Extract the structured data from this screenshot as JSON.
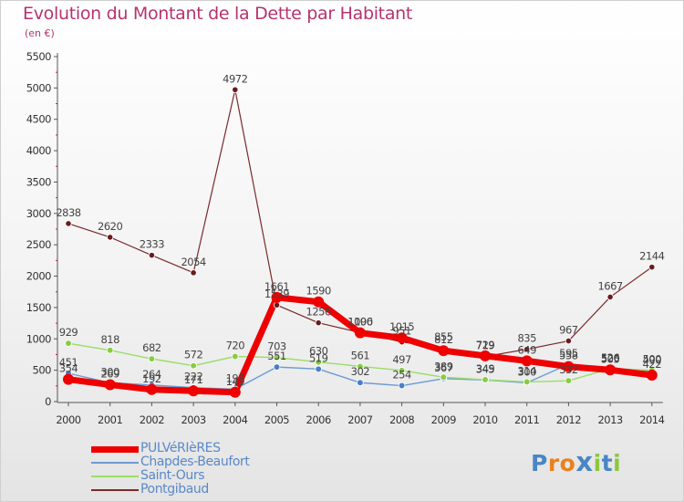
{
  "title": "Evolution du Montant de la Dette par Habitant",
  "unit_label": "(en €)",
  "logo": {
    "text": "Proxiti",
    "colors": [
      "#4a86c5",
      "#e9811e",
      "#e9811e",
      "#4a86c5",
      "#8cc63f",
      "#4a86c5",
      "#8cc63f"
    ]
  },
  "chart_data": {
    "type": "line",
    "title": "Evolution du Montant de la Dette par Habitant",
    "ylabel": "(en €)",
    "xlabel": "",
    "categories": [
      "2000",
      "2001",
      "2002",
      "2003",
      "2004",
      "2005",
      "2006",
      "2007",
      "2008",
      "2009",
      "2010",
      "2011",
      "2012",
      "2013",
      "2014"
    ],
    "ylim": [
      0,
      5500
    ],
    "yticks": [
      0,
      500,
      1000,
      1500,
      2000,
      2500,
      3000,
      3500,
      4000,
      4500,
      5000,
      5500
    ],
    "grid": false,
    "legend_position": "bottom-left",
    "series": [
      {
        "name": "PULVéRIèRES",
        "color": "#ee0000",
        "marker_color": "#ee0000",
        "values": [
          354,
          269,
          192,
          171,
          149,
          1661,
          1590,
          1096,
          1015,
          812,
          729,
          649,
          558,
          505,
          422
        ],
        "labels": [
          "354",
          "269",
          "192",
          "171",
          "149",
          "1661",
          "1590",
          "1096",
          "1015",
          "812",
          "729",
          "649",
          "558",
          "505",
          "422"
        ]
      },
      {
        "name": "Chapdes-Beaufort",
        "color": "#6b9bd6",
        "marker_color": "#4a7fc8",
        "values": [
          451,
          300,
          264,
          222,
          198,
          551,
          519,
          302,
          254,
          367,
          345,
          300,
          595,
          520,
          490
        ],
        "labels": [
          "451",
          "300",
          "264",
          "222",
          "198",
          "551",
          "519",
          "302",
          "254",
          "367",
          "345",
          "300",
          "595",
          "520",
          "490"
        ]
      },
      {
        "name": "Saint-Ours",
        "color": "#99dd66",
        "marker_color": "#88cc44",
        "values": [
          929,
          818,
          682,
          572,
          720,
          703,
          630,
          561,
          497,
          389,
          349,
          314,
          332,
          526,
          500
        ],
        "labels": [
          "929",
          "818",
          "682",
          "572",
          "720",
          "703",
          "630",
          "561",
          "497",
          "389",
          "349",
          "314",
          "332",
          "526",
          "500"
        ]
      },
      {
        "name": "Pontgibaud",
        "color": "#7a2a2a",
        "marker_color": "#6a1b1b",
        "values": [
          2838,
          2620,
          2333,
          2054,
          4972,
          1539,
          1256,
          1100,
          951,
          855,
          719,
          835,
          967,
          1667,
          2144
        ],
        "labels": [
          "2838",
          "2620",
          "2333",
          "2054",
          "4972",
          "1539",
          "1256",
          "1100",
          "951",
          "855",
          "719",
          "835",
          "967",
          "1667",
          "2144"
        ]
      }
    ]
  }
}
